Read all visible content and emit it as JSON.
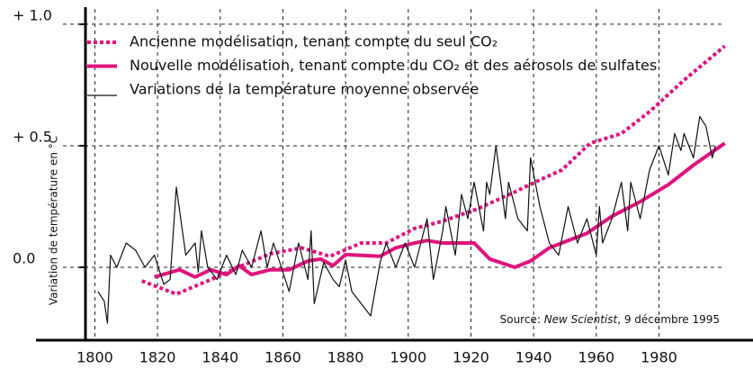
{
  "chart_data": {
    "type": "line",
    "y_label": "Variation de température en °C",
    "source": {
      "prefix": "Source: ",
      "publication": "New Scientist",
      "suffix": ", 9 décembre 1995"
    },
    "xlim": [
      1797,
      2010
    ],
    "ylim": [
      -0.3,
      1.07
    ],
    "xticks": [
      1800,
      1820,
      1840,
      1860,
      1880,
      1900,
      1920,
      1940,
      1960,
      1980
    ],
    "yticks": [
      {
        "value": 0,
        "label": "0.0"
      },
      {
        "value": 0.5,
        "label": "+ 0.5"
      },
      {
        "value": 1,
        "label": "+ 1.0"
      }
    ],
    "grid": true,
    "series": [
      {
        "name": "Ancienne modélisation, tenant compte du seul CO₂",
        "color": "#e0137d",
        "style": "dotted",
        "x": [
          1815,
          1826,
          1836,
          1847,
          1856,
          1866,
          1875,
          1885,
          1893,
          1902,
          1911,
          1922,
          1934,
          1942,
          1949,
          1958,
          1968,
          1977,
          1988,
          2001
        ],
        "values": [
          -0.056,
          -0.11,
          -0.056,
          0.007,
          0.056,
          0.08,
          0.045,
          0.1,
          0.1,
          0.16,
          0.19,
          0.24,
          0.31,
          0.36,
          0.4,
          0.51,
          0.55,
          0.64,
          0.77,
          0.91
        ]
      },
      {
        "name": "Nouvelle modélisation, tenant compte du CO₂ et des aérosols de sulfates",
        "color": "#e0137d",
        "style": "thick",
        "x": [
          1819,
          1827,
          1832,
          1837,
          1842,
          1846,
          1850,
          1856,
          1862,
          1868,
          1872,
          1876,
          1880,
          1885,
          1891,
          1896,
          1902,
          1906,
          1911,
          1916,
          1921,
          1926,
          1934,
          1939,
          1945,
          1949,
          1957,
          1965,
          1974,
          1983,
          1991,
          2001
        ],
        "values": [
          -0.04,
          -0.01,
          -0.04,
          -0.01,
          -0.03,
          0.007,
          -0.03,
          -0.01,
          -0.01,
          0.026,
          0.034,
          0.007,
          0.052,
          0.049,
          0.045,
          0.08,
          0.1,
          0.11,
          0.1,
          0.1,
          0.1,
          0.034,
          0.0,
          0.026,
          0.08,
          0.1,
          0.14,
          0.21,
          0.27,
          0.34,
          0.42,
          0.51
        ]
      },
      {
        "name": "Variations de la température moyenne observée",
        "color": "#111111",
        "style": "thin",
        "x": [
          1801,
          1803,
          1804,
          1805,
          1807,
          1810,
          1813,
          1816,
          1819,
          1822,
          1824,
          1826,
          1829,
          1832,
          1833,
          1834,
          1836,
          1839,
          1842,
          1845,
          1847,
          1850,
          1853,
          1855,
          1857,
          1860,
          1862,
          1865,
          1868,
          1869,
          1870,
          1873,
          1876,
          1878,
          1880,
          1882,
          1885,
          1888,
          1891,
          1893,
          1896,
          1899,
          1902,
          1906,
          1908,
          1911,
          1912,
          1915,
          1917,
          1919,
          1921,
          1924,
          1925,
          1926,
          1928,
          1931,
          1932,
          1935,
          1938,
          1939,
          1942,
          1945,
          1948,
          1951,
          1954,
          1957,
          1960,
          1961,
          1962,
          1965,
          1968,
          1970,
          1971,
          1974,
          1977,
          1980,
          1983,
          1985,
          1987,
          1988,
          1991,
          1993,
          1995,
          1997,
          1998
        ],
        "values": [
          -0.1,
          -0.14,
          -0.23,
          0.05,
          0.0,
          0.1,
          0.07,
          0.0,
          0.05,
          -0.07,
          -0.05,
          0.33,
          0.05,
          0.1,
          -0.02,
          0.15,
          0.0,
          -0.05,
          0.05,
          -0.03,
          0.07,
          0.0,
          0.15,
          0.0,
          0.1,
          -0.02,
          -0.1,
          0.1,
          -0.05,
          0.15,
          -0.15,
          0.02,
          -0.05,
          -0.08,
          0.03,
          -0.1,
          -0.15,
          -0.2,
          0.02,
          0.1,
          0.0,
          0.1,
          0.0,
          0.2,
          -0.05,
          0.15,
          0.25,
          0.05,
          0.3,
          0.2,
          0.35,
          0.15,
          0.35,
          0.3,
          0.5,
          0.2,
          0.35,
          0.2,
          0.15,
          0.45,
          0.25,
          0.1,
          0.05,
          0.25,
          0.1,
          0.2,
          0.05,
          0.25,
          0.1,
          0.2,
          0.35,
          0.15,
          0.35,
          0.2,
          0.4,
          0.5,
          0.38,
          0.55,
          0.48,
          0.55,
          0.45,
          0.62,
          0.58,
          0.45,
          0.5
        ]
      }
    ]
  }
}
